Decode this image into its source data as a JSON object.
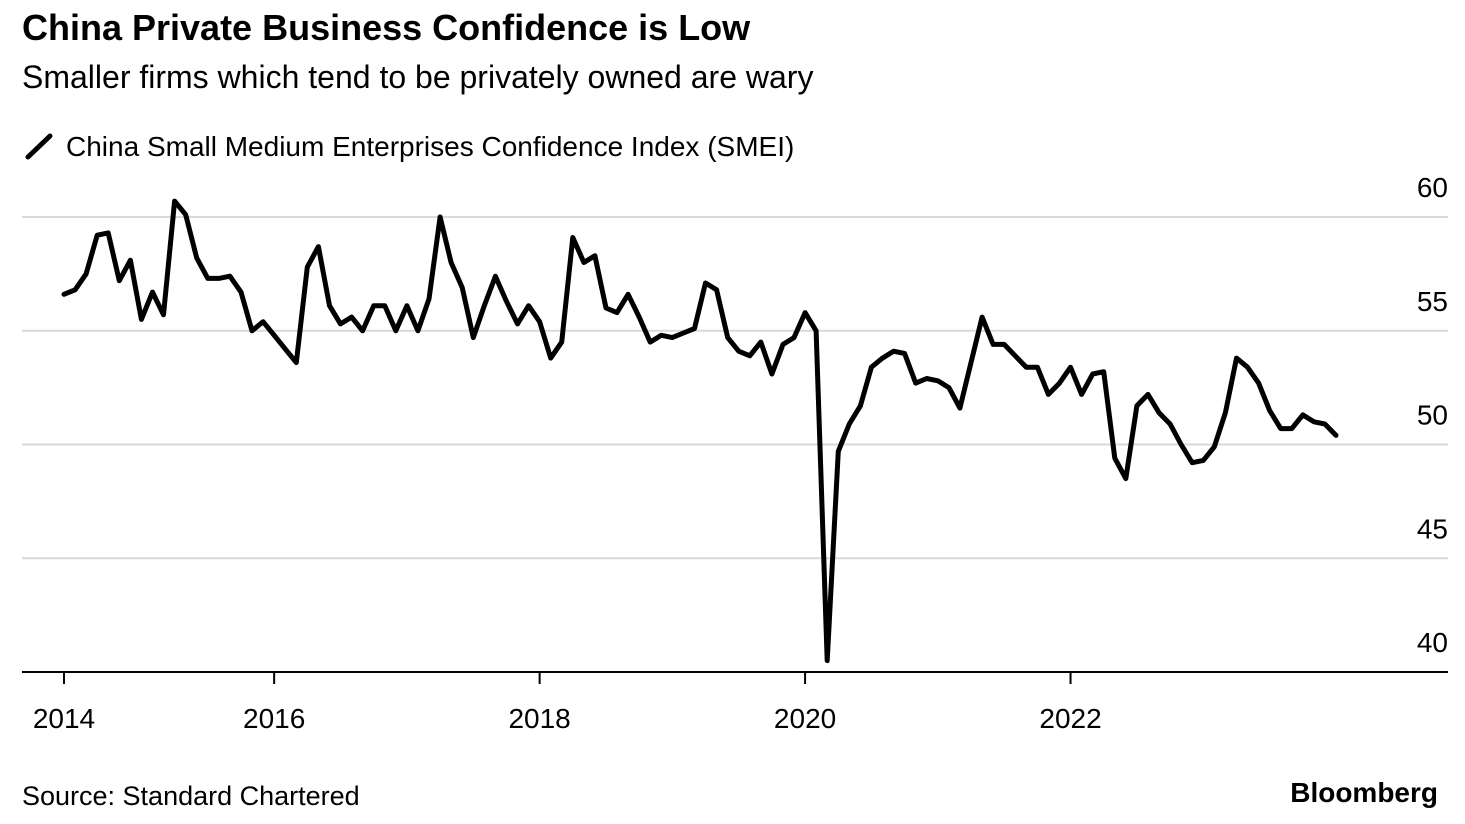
{
  "chart_data": {
    "type": "line",
    "title": "China Private Business Confidence is Low",
    "subtitle": "Smaller firms which tend to be privately owned are wary",
    "source": "Source: Standard Chartered",
    "credit": "Bloomberg",
    "categories": [
      "2014",
      null,
      null,
      null,
      null,
      null,
      null,
      null,
      null,
      null,
      null,
      null,
      null,
      null,
      null,
      null,
      null,
      null,
      null,
      "2016",
      null,
      null,
      null,
      null,
      null,
      null,
      null,
      null,
      null,
      null,
      null,
      null,
      null,
      null,
      null,
      null,
      null,
      null,
      null,
      null,
      null,
      null,
      null,
      "2018",
      null,
      null,
      null,
      null,
      null,
      null,
      null,
      null,
      null,
      null,
      null,
      null,
      null,
      null,
      null,
      null,
      null,
      null,
      null,
      null,
      null,
      null,
      null,
      "2020",
      null,
      null,
      null,
      null,
      null,
      null,
      null,
      null,
      null,
      null,
      null,
      null,
      null,
      null,
      null,
      null,
      null,
      null,
      null,
      null,
      null,
      null,
      null,
      "2022",
      null,
      null,
      null,
      null,
      null,
      null,
      null,
      null,
      null,
      null,
      null,
      null,
      null,
      null,
      null,
      null,
      null,
      null,
      null,
      null,
      null,
      null,
      null,
      null
    ],
    "series": [
      {
        "name": "China Small Medium Enterprises Confidence Index (SMEI)",
        "color": "#000000",
        "values": [
          56.6,
          56.8,
          57.5,
          59.2,
          59.3,
          57.2,
          58.1,
          55.5,
          56.7,
          55.7,
          60.7,
          60.1,
          58.2,
          57.3,
          57.3,
          57.4,
          56.7,
          55.0,
          55.4,
          54.8,
          54.2,
          53.6,
          57.8,
          58.7,
          56.1,
          55.3,
          55.6,
          55.0,
          56.1,
          56.1,
          55.0,
          56.1,
          55.0,
          56.4,
          60.0,
          58.0,
          56.9,
          54.7,
          56.1,
          57.4,
          56.3,
          55.3,
          56.1,
          55.4,
          53.8,
          54.5,
          59.1,
          58.0,
          58.3,
          56.0,
          55.8,
          56.6,
          55.6,
          54.5,
          54.8,
          54.7,
          54.9,
          55.1,
          57.1,
          56.8,
          54.7,
          54.1,
          53.9,
          54.5,
          53.1,
          54.4,
          54.7,
          55.8,
          55.0,
          40.5,
          49.7,
          50.9,
          51.7,
          53.4,
          53.8,
          54.1,
          54.0,
          52.7,
          52.9,
          52.8,
          52.5,
          51.6,
          53.6,
          55.6,
          54.4,
          54.4,
          53.9,
          53.4,
          53.4,
          52.2,
          52.7,
          53.4,
          52.2,
          53.1,
          53.2,
          49.4,
          48.5,
          51.7,
          52.2,
          51.4,
          50.9,
          50.0,
          49.2,
          49.3,
          49.9,
          51.4,
          53.8,
          53.4,
          52.7,
          51.5,
          50.7,
          50.7,
          51.3,
          51.0,
          50.9,
          50.4
        ]
      }
    ],
    "ylim": [
      40,
      60
    ],
    "yticks": [
      40,
      45,
      50,
      55,
      60
    ],
    "grid": true
  }
}
